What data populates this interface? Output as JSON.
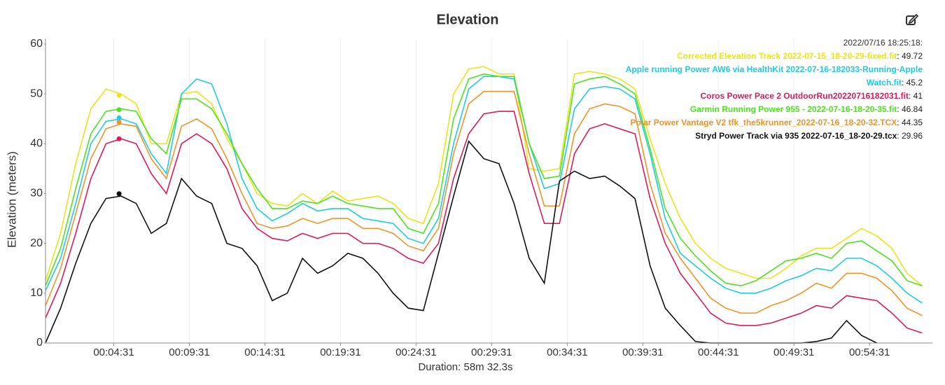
{
  "chart_data": {
    "type": "line",
    "title": "Elevation",
    "ylabel": "Elevation (meters)",
    "xlabel": "Duration: 58m 32.3s",
    "x": [
      0,
      60,
      120,
      180,
      240,
      300,
      360,
      420,
      480,
      540,
      600,
      660,
      720,
      780,
      840,
      900,
      960,
      1020,
      1080,
      1140,
      1200,
      1260,
      1320,
      1380,
      1440,
      1500,
      1560,
      1620,
      1680,
      1740,
      1800,
      1860,
      1920,
      1980,
      2040,
      2100,
      2160,
      2220,
      2280,
      2340,
      2400,
      2460,
      2520,
      2580,
      2640,
      2700,
      2760,
      2820,
      2880,
      2940,
      3000,
      3060,
      3120,
      3180,
      3240,
      3300,
      3360,
      3420,
      3480
    ],
    "xlim": [
      0,
      3512.3
    ],
    "xticks": [
      {
        "value": 271,
        "label": "00:04:31"
      },
      {
        "value": 571,
        "label": "00:09:31"
      },
      {
        "value": 871,
        "label": "00:14:31"
      },
      {
        "value": 1171,
        "label": "00:19:31"
      },
      {
        "value": 1471,
        "label": "00:24:31"
      },
      {
        "value": 1771,
        "label": "00:29:31"
      },
      {
        "value": 2071,
        "label": "00:34:31"
      },
      {
        "value": 2371,
        "label": "00:39:31"
      },
      {
        "value": 2671,
        "label": "00:44:31"
      },
      {
        "value": 2971,
        "label": "00:49:31"
      },
      {
        "value": 3271,
        "label": "00:54:31"
      }
    ],
    "ylim": [
      0,
      60
    ],
    "yticks": [
      0,
      10,
      20,
      30,
      40,
      50,
      60
    ],
    "grid": true,
    "hover": {
      "label": "2022/07/16 18:25:18:",
      "separator": ": ",
      "x": 292
    },
    "series": [
      {
        "name": "Corrected Elevation Track 2022-07-15_18-20-29-fixed.fit",
        "color": "#e6e61e",
        "hover_value": 49.72,
        "values": [
          12.5,
          22,
          36,
          47,
          51,
          50,
          48,
          40,
          40,
          50,
          50.5,
          48,
          41,
          36,
          30,
          28,
          27.5,
          30,
          28,
          30.5,
          28.5,
          29,
          29.5,
          28,
          25,
          24,
          32,
          50,
          55,
          55.5,
          54,
          54,
          35,
          34.5,
          35,
          54,
          54.5,
          54,
          53,
          51,
          41,
          32,
          25,
          20,
          17,
          15,
          14,
          13,
          13,
          15,
          17.5,
          19,
          19,
          21,
          23,
          21.5,
          19,
          14,
          11.5
        ]
      },
      {
        "name": "Apple running Power AW6 via HealthKit 2022-07-16-182033-Running-Apple Watch.fit",
        "color": "#1fcbe0",
        "hover_value": 45.2,
        "values": [
          10.5,
          17,
          28,
          40,
          44.5,
          45,
          44,
          38,
          34,
          50,
          53,
          52,
          44,
          33,
          27,
          24.5,
          26,
          28,
          26.5,
          27,
          27,
          25,
          24.5,
          24,
          21,
          20,
          25,
          40,
          51,
          53.5,
          53.5,
          53,
          40,
          31,
          32,
          47,
          51,
          51.5,
          51,
          49,
          38,
          25,
          18,
          15.5,
          13,
          11,
          10,
          10,
          11,
          12.5,
          13.5,
          15,
          14.5,
          17,
          17,
          15.5,
          13,
          10,
          8
        ]
      },
      {
        "name": "Coros Power Pace 2 OutdoorRun20220716182031.fit",
        "color": "#e0195a",
        "hover_value": 41,
        "values": [
          5,
          12,
          22,
          33,
          40,
          41,
          40,
          34,
          30,
          40,
          42,
          40,
          35,
          27,
          23,
          21,
          20.5,
          22,
          21,
          22,
          22,
          20,
          20,
          19,
          17,
          16,
          20,
          33,
          42,
          46,
          46.5,
          46.5,
          34,
          24,
          24,
          38,
          43,
          44,
          43,
          42,
          29,
          20,
          14,
          10,
          6,
          4,
          3.5,
          3.5,
          4,
          5,
          6,
          7.5,
          7,
          9.5,
          9,
          8.5,
          6,
          3,
          2
        ]
      },
      {
        "name": "Garmin Running Power 955 - 2022-07-16-18-20-35.fit",
        "color": "#4ee21f",
        "hover_value": 46.84,
        "values": [
          11.5,
          19,
          31,
          42,
          46.5,
          47,
          46.5,
          41,
          38,
          49,
          49,
          47,
          42,
          36,
          31,
          27,
          27,
          28.5,
          28,
          29.5,
          28,
          27.5,
          27,
          27,
          23,
          22,
          28,
          45,
          53,
          54,
          53.5,
          53.5,
          40,
          33,
          33.5,
          52,
          53,
          53.5,
          52,
          50,
          39,
          27,
          21,
          17.5,
          14.5,
          12,
          11.5,
          12.5,
          14.5,
          16.5,
          17,
          18,
          17,
          20,
          20.5,
          18.5,
          16.5,
          12.5,
          11.5
        ]
      },
      {
        "name": "Polar Power Vantage V2 tfk_the5krunner_2022-07-16_18-20-32.TCX",
        "color": "#f0932a",
        "hover_value": 44.35,
        "values": [
          7.5,
          15,
          26,
          37,
          43,
          44,
          43.5,
          37,
          33,
          43.5,
          45,
          43,
          37,
          30,
          24,
          23,
          23.5,
          25,
          24,
          25,
          25,
          23,
          23,
          22,
          19.5,
          18.5,
          23,
          38,
          48,
          50.5,
          50.5,
          50.5,
          38,
          27.5,
          27.5,
          42,
          47,
          48,
          47.5,
          46,
          32,
          22,
          17,
          13,
          9,
          7,
          6,
          6,
          7.5,
          8.5,
          10,
          12,
          11,
          14,
          14,
          13,
          10.5,
          7,
          5.5
        ]
      },
      {
        "name": "Stryd Power Track via 935 2022-07-16_18-20-29.tcx",
        "color": "#111111",
        "hover_value": 29.96,
        "values": [
          0,
          7,
          16,
          24,
          29,
          29.5,
          28,
          22,
          24,
          33,
          29.5,
          28,
          20,
          19,
          15.5,
          8.5,
          10,
          17,
          14,
          15.5,
          18,
          17,
          14,
          10,
          7,
          6.5,
          18,
          29.5,
          40.5,
          37,
          36,
          28,
          17,
          12,
          32.5,
          34.5,
          33,
          33.5,
          31.5,
          29,
          15.5,
          7,
          3.5,
          0.3,
          0,
          0,
          0,
          0,
          0,
          0,
          0,
          0.3,
          1,
          4.5,
          1.5,
          0,
          null,
          null,
          null
        ]
      }
    ]
  }
}
